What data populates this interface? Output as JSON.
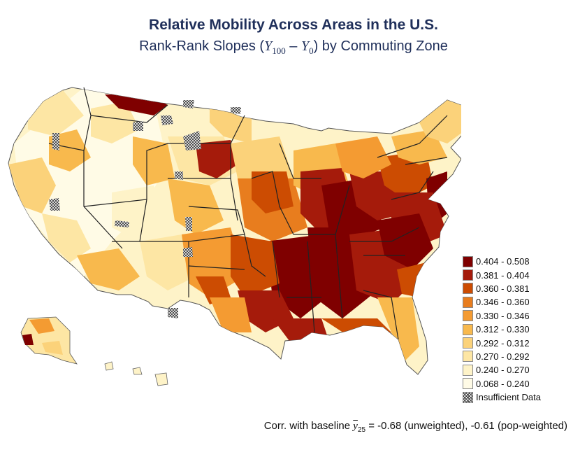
{
  "title": "Relative Mobility Across Areas in the U.S.",
  "subtitle": {
    "prefix": "Rank-Rank Slopes (",
    "y_symbol": "Y",
    "sub_100": "100",
    "minus": " – ",
    "sub_0": "0",
    "suffix": ") by Commuting Zone"
  },
  "legend": [
    {
      "label": "0.404 - 0.508",
      "color": "#7f0000"
    },
    {
      "label": "0.381 - 0.404",
      "color": "#a51b0b"
    },
    {
      "label": "0.360 - 0.381",
      "color": "#cc4c02"
    },
    {
      "label": "0.346 - 0.360",
      "color": "#e87d1e"
    },
    {
      "label": "0.330 - 0.346",
      "color": "#f49b32"
    },
    {
      "label": "0.312 - 0.330",
      "color": "#f8b94d"
    },
    {
      "label": "0.292 - 0.312",
      "color": "#fbd27a"
    },
    {
      "label": "0.270 - 0.292",
      "color": "#fde6a4"
    },
    {
      "label": "0.240 - 0.270",
      "color": "#fef3c8"
    },
    {
      "label": "0.068 - 0.240",
      "color": "#fffbe6"
    },
    {
      "label": "Insufficient Data",
      "color": "hatched"
    }
  ],
  "footnote": {
    "prefix": "Corr. with baseline ",
    "y_symbol": "y",
    "sub": "25",
    "suffix": " = -0.68 (unweighted), -0.61 (pop-weighted)"
  }
}
